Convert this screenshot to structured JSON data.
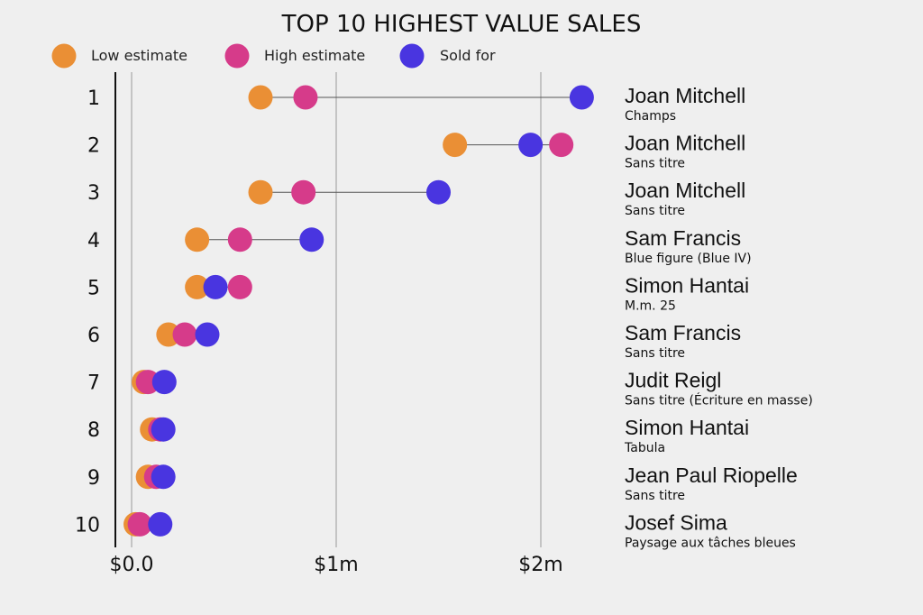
{
  "chart_data": {
    "type": "dot-plot",
    "title": "TOP 10 HIGHEST VALUE SALES",
    "legend": [
      {
        "key": "low",
        "label": "Low estimate",
        "color": "#ea8f35"
      },
      {
        "key": "high",
        "label": "High estimate",
        "color": "#d63b8a"
      },
      {
        "key": "sold",
        "label": "Sold for",
        "color": "#4935e0"
      }
    ],
    "xlim": [
      0,
      2200000
    ],
    "xticks": [
      {
        "value": 0,
        "label": "$0.0"
      },
      {
        "value": 1000000,
        "label": "$1m"
      },
      {
        "value": 2000000,
        "label": "$2m"
      }
    ],
    "rows": [
      {
        "rank": "1",
        "artist": "Joan Mitchell",
        "work": "Champs",
        "low": 630000,
        "high": 850000,
        "sold": 2200000
      },
      {
        "rank": "2",
        "artist": "Joan Mitchell",
        "work": "Sans titre",
        "low": 1580000,
        "high": 2100000,
        "sold": 1950000
      },
      {
        "rank": "3",
        "artist": "Joan Mitchell",
        "work": "Sans titre",
        "low": 630000,
        "high": 840000,
        "sold": 1500000
      },
      {
        "rank": "4",
        "artist": "Sam Francis",
        "work": "Blue figure (Blue IV)",
        "low": 320000,
        "high": 530000,
        "sold": 880000
      },
      {
        "rank": "5",
        "artist": "Simon Hantai",
        "work": "M.m. 25",
        "low": 320000,
        "high": 530000,
        "sold": 410000
      },
      {
        "rank": "6",
        "artist": "Sam Francis",
        "work": "Sans titre",
        "low": 180000,
        "high": 260000,
        "sold": 370000
      },
      {
        "rank": "7",
        "artist": "Judit Reigl",
        "work": "Sans titre (Écriture en masse)",
        "low": 60000,
        "high": 80000,
        "sold": 160000
      },
      {
        "rank": "8",
        "artist": "Simon Hantai",
        "work": "Tabula",
        "low": 100000,
        "high": 140000,
        "sold": 155000
      },
      {
        "rank": "9",
        "artist": "Jean Paul Riopelle",
        "work": "Sans titre",
        "low": 80000,
        "high": 120000,
        "sold": 155000
      },
      {
        "rank": "10",
        "artist": "Josef Sima",
        "work": "Paysage aux tâches bleues",
        "low": 20000,
        "high": 40000,
        "sold": 140000
      }
    ]
  }
}
